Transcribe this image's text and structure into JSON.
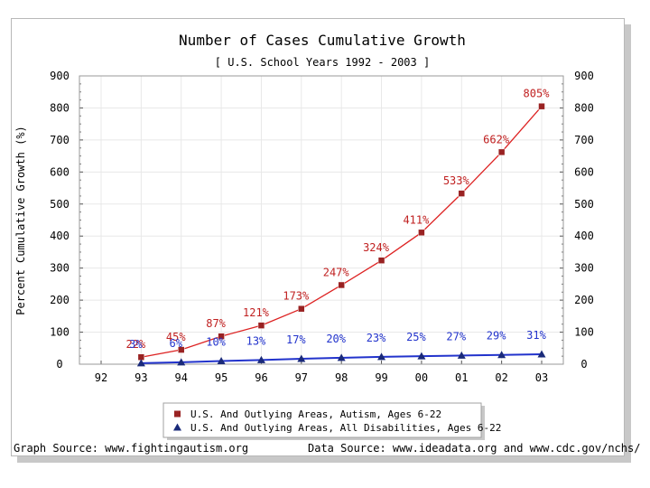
{
  "chart_data": {
    "type": "line",
    "title": "Number of Cases Cumulative Growth",
    "subtitle": "[ U.S. School Years 1992 - 2003 ]",
    "ylabel": "Percent Cumulative Growth (%)",
    "xlabel": "",
    "categories": [
      "92",
      "93",
      "94",
      "95",
      "96",
      "97",
      "98",
      "99",
      "00",
      "01",
      "02",
      "03"
    ],
    "ylim": [
      0,
      900
    ],
    "yticks": [
      0,
      100,
      200,
      300,
      400,
      500,
      600,
      700,
      800,
      900
    ],
    "grid": true,
    "legend_position": "bottom",
    "series": [
      {
        "name": "U.S. And Outlying Areas, Autism, Ages 6-22",
        "color": "#dd2222",
        "marker_color": "#992222",
        "marker": "square",
        "values": [
          null,
          22,
          45,
          87,
          121,
          173,
          247,
          324,
          411,
          533,
          662,
          805
        ],
        "labels": [
          "",
          "22%",
          "45%",
          "87%",
          "121%",
          "173%",
          "247%",
          "324%",
          "411%",
          "533%",
          "662%",
          "805%"
        ]
      },
      {
        "name": "U.S. And Outlying Areas, All Disabilities, Ages 6-22",
        "color": "#2233cc",
        "marker_color": "#1a2a7a",
        "marker": "triangle",
        "values": [
          null,
          3,
          6,
          10,
          13,
          17,
          20,
          23,
          25,
          27,
          29,
          31
        ],
        "labels": [
          "",
          "3%",
          "6%",
          "10%",
          "13%",
          "17%",
          "20%",
          "23%",
          "25%",
          "27%",
          "29%",
          "31%"
        ]
      }
    ]
  },
  "footer": {
    "graph_source": "Graph Source: www.fightingautism.org",
    "data_source": "Data Source: www.ideadata.org and www.cdc.gov/nchs/"
  }
}
